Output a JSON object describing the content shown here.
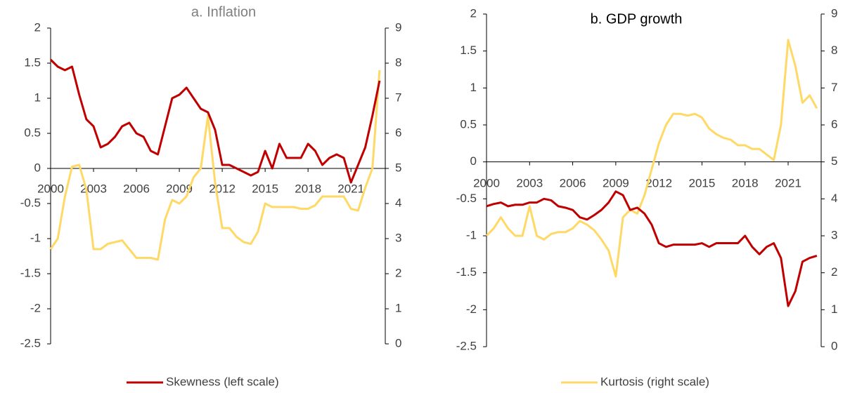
{
  "chart_data": [
    {
      "type": "line",
      "title": "a. Inflation",
      "x": [
        2000,
        2000.5,
        2001,
        2001.5,
        2002,
        2002.5,
        2003,
        2003.5,
        2004,
        2004.5,
        2005,
        2005.5,
        2006,
        2006.5,
        2007,
        2007.5,
        2008,
        2008.5,
        2009,
        2009.5,
        2010,
        2010.5,
        2011,
        2011.5,
        2012,
        2012.5,
        2013,
        2013.5,
        2014,
        2014.5,
        2015,
        2015.5,
        2016,
        2016.5,
        2017,
        2017.5,
        2018,
        2018.5,
        2019,
        2019.5,
        2020,
        2020.5,
        2021,
        2021.5,
        2022,
        2022.5,
        2023
      ],
      "xlim": [
        2000,
        2023.4
      ],
      "xticks": [
        2000,
        2003,
        2006,
        2009,
        2012,
        2015,
        2018,
        2021
      ],
      "ylim": [
        -2.5,
        2
      ],
      "yticks": [
        -2.5,
        -2,
        -1.5,
        -1,
        -0.5,
        0,
        0.5,
        1,
        1.5,
        2
      ],
      "y2lim": [
        0,
        9
      ],
      "y2ticks": [
        0,
        1,
        2,
        3,
        4,
        5,
        6,
        7,
        8,
        9
      ],
      "series": [
        {
          "name": "Skewness (left scale)",
          "color": "#c00000",
          "values": [
            1.55,
            1.45,
            1.4,
            1.45,
            1.05,
            0.7,
            0.6,
            0.3,
            0.35,
            0.45,
            0.6,
            0.65,
            0.5,
            0.45,
            0.25,
            0.2,
            0.6,
            1.0,
            1.05,
            1.15,
            1.0,
            0.85,
            0.8,
            0.55,
            0.05,
            0.05,
            0.0,
            -0.05,
            -0.1,
            -0.05,
            0.25,
            0.0,
            0.35,
            0.15,
            0.15,
            0.15,
            0.35,
            0.25,
            0.05,
            0.15,
            0.2,
            0.15,
            -0.2,
            0.05,
            0.3,
            0.75,
            1.25
          ]
        },
        {
          "name": "Kurtosis (right scale)",
          "color": "#ffd966",
          "axis": "y2",
          "values": [
            2.7,
            3.0,
            4.2,
            5.05,
            5.1,
            4.4,
            2.7,
            2.7,
            2.85,
            2.9,
            2.95,
            2.7,
            2.45,
            2.45,
            2.45,
            2.4,
            3.55,
            4.1,
            4.0,
            4.2,
            4.75,
            5.0,
            6.5,
            4.6,
            3.3,
            3.3,
            3.05,
            2.9,
            2.85,
            3.2,
            4.0,
            3.9,
            3.9,
            3.9,
            3.9,
            3.85,
            3.85,
            3.95,
            4.2,
            4.2,
            4.2,
            4.2,
            3.85,
            3.8,
            4.45,
            5.0,
            7.8
          ]
        }
      ]
    },
    {
      "type": "line",
      "title": "b. GDP growth",
      "x": [
        2000,
        2000.5,
        2001,
        2001.5,
        2002,
        2002.5,
        2003,
        2003.5,
        2004,
        2004.5,
        2005,
        2005.5,
        2006,
        2006.5,
        2007,
        2007.5,
        2008,
        2008.5,
        2009,
        2009.5,
        2010,
        2010.5,
        2011,
        2011.5,
        2012,
        2012.5,
        2013,
        2013.5,
        2014,
        2014.5,
        2015,
        2015.5,
        2016,
        2016.5,
        2017,
        2017.5,
        2018,
        2018.5,
        2019,
        2019.5,
        2020,
        2020.5,
        2021,
        2021.5,
        2022,
        2022.5,
        2023
      ],
      "xlim": [
        2000,
        2023.3
      ],
      "xticks": [
        2000,
        2003,
        2006,
        2009,
        2012,
        2015,
        2018,
        2021
      ],
      "ylim": [
        -2.5,
        2
      ],
      "yticks": [
        -2.5,
        -2,
        -1.5,
        -1,
        -0.5,
        0,
        0.5,
        1,
        1.5,
        2
      ],
      "y2lim": [
        0,
        9
      ],
      "y2ticks": [
        0,
        1,
        2,
        3,
        4,
        5,
        6,
        7,
        8,
        9
      ],
      "series": [
        {
          "color": "#c00000",
          "values": [
            -0.6,
            -0.57,
            -0.55,
            -0.6,
            -0.58,
            -0.58,
            -0.55,
            -0.55,
            -0.5,
            -0.52,
            -0.6,
            -0.62,
            -0.65,
            -0.75,
            -0.78,
            -0.72,
            -0.65,
            -0.55,
            -0.4,
            -0.45,
            -0.65,
            -0.62,
            -0.7,
            -0.85,
            -1.1,
            -1.15,
            -1.12,
            -1.12,
            -1.12,
            -1.12,
            -1.1,
            -1.15,
            -1.1,
            -1.1,
            -1.1,
            -1.1,
            -1.0,
            -1.15,
            -1.25,
            -1.15,
            -1.1,
            -1.3,
            -1.95,
            -1.75,
            -1.35,
            -1.3,
            -1.27
          ]
        },
        {
          "color": "#ffd966",
          "axis": "y2",
          "values": [
            3.0,
            3.2,
            3.5,
            3.2,
            3.0,
            3.0,
            3.8,
            3.0,
            2.9,
            3.05,
            3.1,
            3.1,
            3.2,
            3.4,
            3.3,
            3.15,
            2.9,
            2.6,
            1.9,
            3.5,
            3.7,
            3.6,
            4.1,
            4.8,
            5.5,
            6.0,
            6.3,
            6.3,
            6.25,
            6.3,
            6.2,
            5.9,
            5.75,
            5.65,
            5.6,
            5.45,
            5.45,
            5.35,
            5.35,
            5.2,
            5.05,
            6.0,
            8.3,
            7.6,
            6.6,
            6.8,
            6.45
          ]
        }
      ]
    }
  ]
}
